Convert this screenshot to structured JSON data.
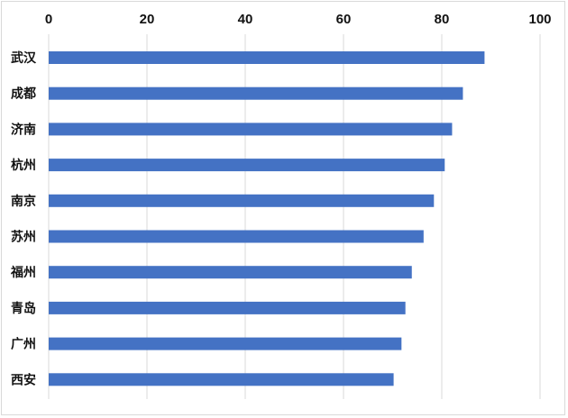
{
  "chart_data": {
    "type": "bar",
    "orientation": "horizontal",
    "x_axis_position": "top",
    "categories": [
      "武汉",
      "成都",
      "济南",
      "杭州",
      "南京",
      "苏州",
      "福州",
      "青岛",
      "广州",
      "西安"
    ],
    "values": [
      88.7,
      84.3,
      82.1,
      80.6,
      78.4,
      76.3,
      73.9,
      72.6,
      71.8,
      70.2
    ],
    "xlim": [
      0,
      100
    ],
    "xticks": [
      0,
      20,
      40,
      60,
      80,
      100
    ],
    "grid": true,
    "legend": "none",
    "bar_color": "#4472c4",
    "grid_color": "#d9d9d9"
  }
}
